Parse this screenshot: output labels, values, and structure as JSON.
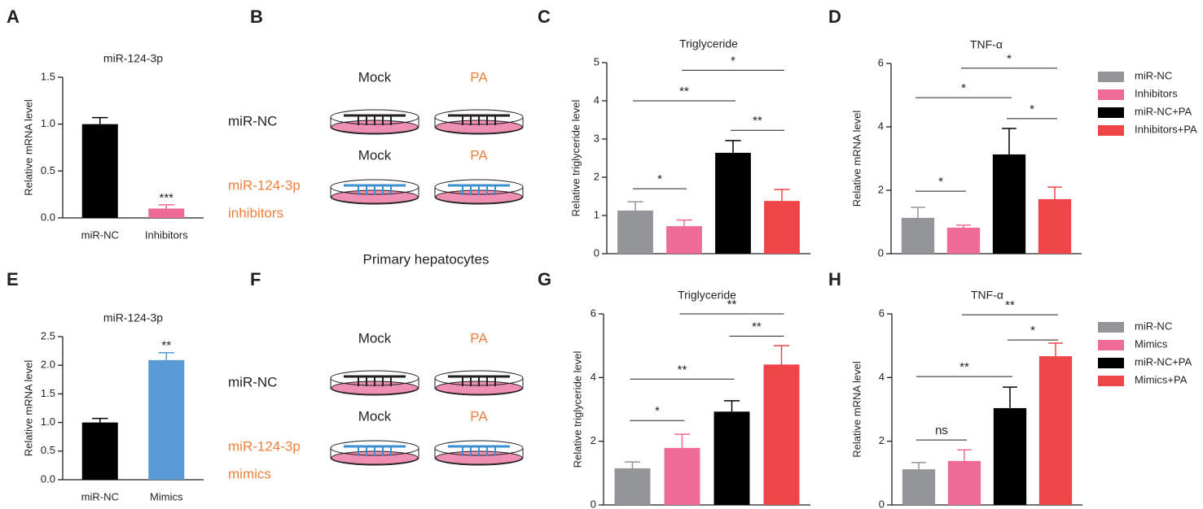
{
  "chart_data": [
    {
      "panel": "A",
      "type": "bar",
      "title": "miR-124-3p",
      "y_label": "Relative mRNA level",
      "categories": [
        "miR-NC",
        "Inhibitors"
      ],
      "values": [
        1.0,
        0.1
      ],
      "errors": [
        0.07,
        0.04
      ],
      "colors": [
        "#000000",
        "#ee6b97"
      ],
      "ylim": [
        0,
        1.5
      ],
      "yticks": [
        {
          "value": 0,
          "label": "0.0"
        },
        0.5,
        {
          "value": 1,
          "label": "1.0"
        },
        1.5
      ],
      "annotations": [
        {
          "index": 1,
          "label": "***"
        }
      ]
    },
    {
      "panel": "C",
      "type": "bar",
      "title": "Triglyceride",
      "y_label": "Relative triglyceride level",
      "values": [
        1.13,
        0.72,
        2.64,
        1.38
      ],
      "errors": [
        0.23,
        0.16,
        0.32,
        0.3
      ],
      "colors": [
        "#939598",
        "#ee6b97",
        "#000000",
        "#ee4549"
      ],
      "ylim": [
        0,
        5
      ],
      "yticks": [
        0,
        1,
        2,
        3,
        4,
        5
      ],
      "brackets": [
        {
          "from": 0,
          "to": 1,
          "y": 1.7,
          "label": "*"
        },
        {
          "from": 0,
          "to": 2,
          "y": 4.0,
          "label": "**"
        },
        {
          "from": 1,
          "to": 3,
          "y": 4.8,
          "label": "*"
        },
        {
          "from": 2,
          "to": 3,
          "y": 3.23,
          "label": "**"
        }
      ]
    },
    {
      "panel": "D",
      "type": "bar",
      "title": "TNF-α",
      "y_label": "Relative mRNA level",
      "categories": [
        "miR-NC",
        "Inhibitors",
        "miR-NC+PA",
        "Inhibitors+PA"
      ],
      "legend": "right",
      "values": [
        1.13,
        0.82,
        3.13,
        1.72
      ],
      "errors": [
        0.33,
        0.08,
        0.82,
        0.38
      ],
      "colors": [
        "#939598",
        "#ee6b97",
        "#000000",
        "#ee4549"
      ],
      "ylim": [
        0,
        6
      ],
      "yticks": [
        0,
        2,
        4,
        6
      ],
      "brackets": [
        {
          "from": 0,
          "to": 1,
          "y": 1.97,
          "label": "*"
        },
        {
          "from": 0,
          "to": 2,
          "y": 4.92,
          "label": "*"
        },
        {
          "from": 1,
          "to": 3,
          "y": 5.85,
          "label": "*"
        },
        {
          "from": 2,
          "to": 3,
          "y": 4.26,
          "label": "*"
        }
      ]
    },
    {
      "panel": "E",
      "type": "bar",
      "title": "miR-124-3p",
      "y_label": "Relative mRNA level",
      "categories": [
        "miR-NC",
        "Mimics"
      ],
      "values": [
        1.0,
        2.09
      ],
      "errors": [
        0.07,
        0.13
      ],
      "colors": [
        "#000000",
        "#5b9bd5"
      ],
      "ylim": [
        0,
        2.5
      ],
      "yticks": [
        {
          "value": 0,
          "label": "0.0"
        },
        0.5,
        {
          "value": 1,
          "label": "1.0"
        },
        1.5,
        {
          "value": 2,
          "label": "2.0"
        },
        2.5
      ],
      "annotations": [
        {
          "index": 1,
          "label": "**"
        }
      ]
    },
    {
      "panel": "G",
      "type": "bar",
      "title": "Triglyceride",
      "y_label": "Relative  triglyceride level",
      "values": [
        1.15,
        1.79,
        2.93,
        4.41
      ],
      "errors": [
        0.2,
        0.43,
        0.34,
        0.59
      ],
      "colors": [
        "#939598",
        "#ee6b97",
        "#000000",
        "#ee4549"
      ],
      "ylim": [
        0,
        6
      ],
      "yticks": [
        0,
        2,
        4,
        6
      ],
      "brackets": [
        {
          "from": 0,
          "to": 1,
          "y": 2.65,
          "label": "*"
        },
        {
          "from": 0,
          "to": 2,
          "y": 3.95,
          "label": "**"
        },
        {
          "from": 1,
          "to": 3,
          "y": 6.0,
          "label": "**"
        },
        {
          "from": 2,
          "to": 3,
          "y": 5.3,
          "label": "**"
        }
      ]
    },
    {
      "panel": "H",
      "type": "bar",
      "title": "TNF-α",
      "y_label": "Relative mRNA level",
      "categories": [
        "miR-NC",
        "Mimics",
        "miR-NC+PA",
        "Mimics+PA"
      ],
      "legend": "right",
      "values": [
        1.12,
        1.38,
        3.04,
        4.67
      ],
      "errors": [
        0.21,
        0.35,
        0.66,
        0.41
      ],
      "colors": [
        "#939598",
        "#ee6b97",
        "#000000",
        "#ee4549"
      ],
      "ylim": [
        0,
        6
      ],
      "yticks": [
        0,
        2,
        4,
        6
      ],
      "brackets": [
        {
          "from": 0,
          "to": 1,
          "y": 2.04,
          "label": "ns"
        },
        {
          "from": 0,
          "to": 2,
          "y": 4.03,
          "label": "**"
        },
        {
          "from": 1,
          "to": 3,
          "y": 5.97,
          "label": "**"
        },
        {
          "from": 2,
          "to": 3,
          "y": 5.18,
          "label": "*"
        }
      ]
    }
  ],
  "diagrams": [
    {
      "panel": "B",
      "columns": [
        "Mock",
        "PA"
      ],
      "column_colors": [
        "#231f20",
        "#f07f3c"
      ],
      "rows": [
        {
          "label_lines": [
            "miR-NC"
          ],
          "label_color": "#231f20",
          "comb_color": "#231f20"
        },
        {
          "label_lines": [
            "miR-124-3p",
            "inhibitors"
          ],
          "label_color": "#f07f3c",
          "comb_color": "#3b8fd0"
        }
      ],
      "caption": "Primary hepatocytes"
    },
    {
      "panel": "F",
      "columns": [
        "Mock",
        "PA"
      ],
      "column_colors": [
        "#231f20",
        "#f07f3c"
      ],
      "rows": [
        {
          "label_lines": [
            "miR-NC"
          ],
          "label_color": "#231f20",
          "comb_color": "#231f20"
        },
        {
          "label_lines": [
            "miR-124-3p",
            "mimics"
          ],
          "label_color": "#f07f3c",
          "comb_color": "#3b8fd0"
        }
      ],
      "caption": "Primary hepatocytes"
    }
  ]
}
